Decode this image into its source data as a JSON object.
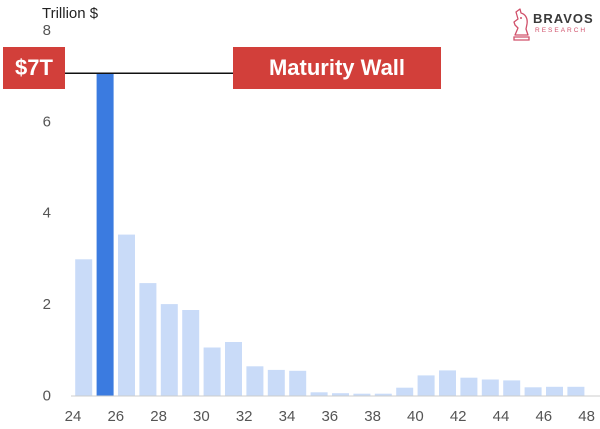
{
  "chart_data": {
    "type": "bar",
    "ylabel": "Trillion $",
    "ylim": [
      0,
      8
    ],
    "xlim": [
      24,
      48
    ],
    "x_ticks": [
      24,
      26,
      28,
      30,
      32,
      34,
      36,
      38,
      40,
      42,
      44,
      46,
      48
    ],
    "y_ticks": [
      0,
      2,
      4,
      6,
      8
    ],
    "categories": [
      25,
      26,
      27,
      28,
      29,
      30,
      31,
      32,
      33,
      34,
      35,
      36,
      37,
      38,
      39,
      40,
      41,
      42,
      43,
      44,
      45,
      46,
      47,
      48
    ],
    "values": [
      2.98,
      7.05,
      3.52,
      2.46,
      2.0,
      1.87,
      1.05,
      1.17,
      0.64,
      0.56,
      0.54,
      0.07,
      0.05,
      0.04,
      0.04,
      0.17,
      0.44,
      0.55,
      0.39,
      0.35,
      0.33,
      0.18,
      0.19,
      0.19
    ],
    "highlight_category": 26,
    "bar_color": "#c9dbf8",
    "highlight_color": "#3b7be0",
    "annotations": {
      "value_label": "$7T",
      "label": "Maturity Wall",
      "value": 7.05,
      "color": "#d23f3a"
    },
    "grid": false
  },
  "brand": {
    "name": "BRAVOS",
    "subtitle": "RESEARCH",
    "logo_icon": "knight-chess-piece-icon"
  }
}
